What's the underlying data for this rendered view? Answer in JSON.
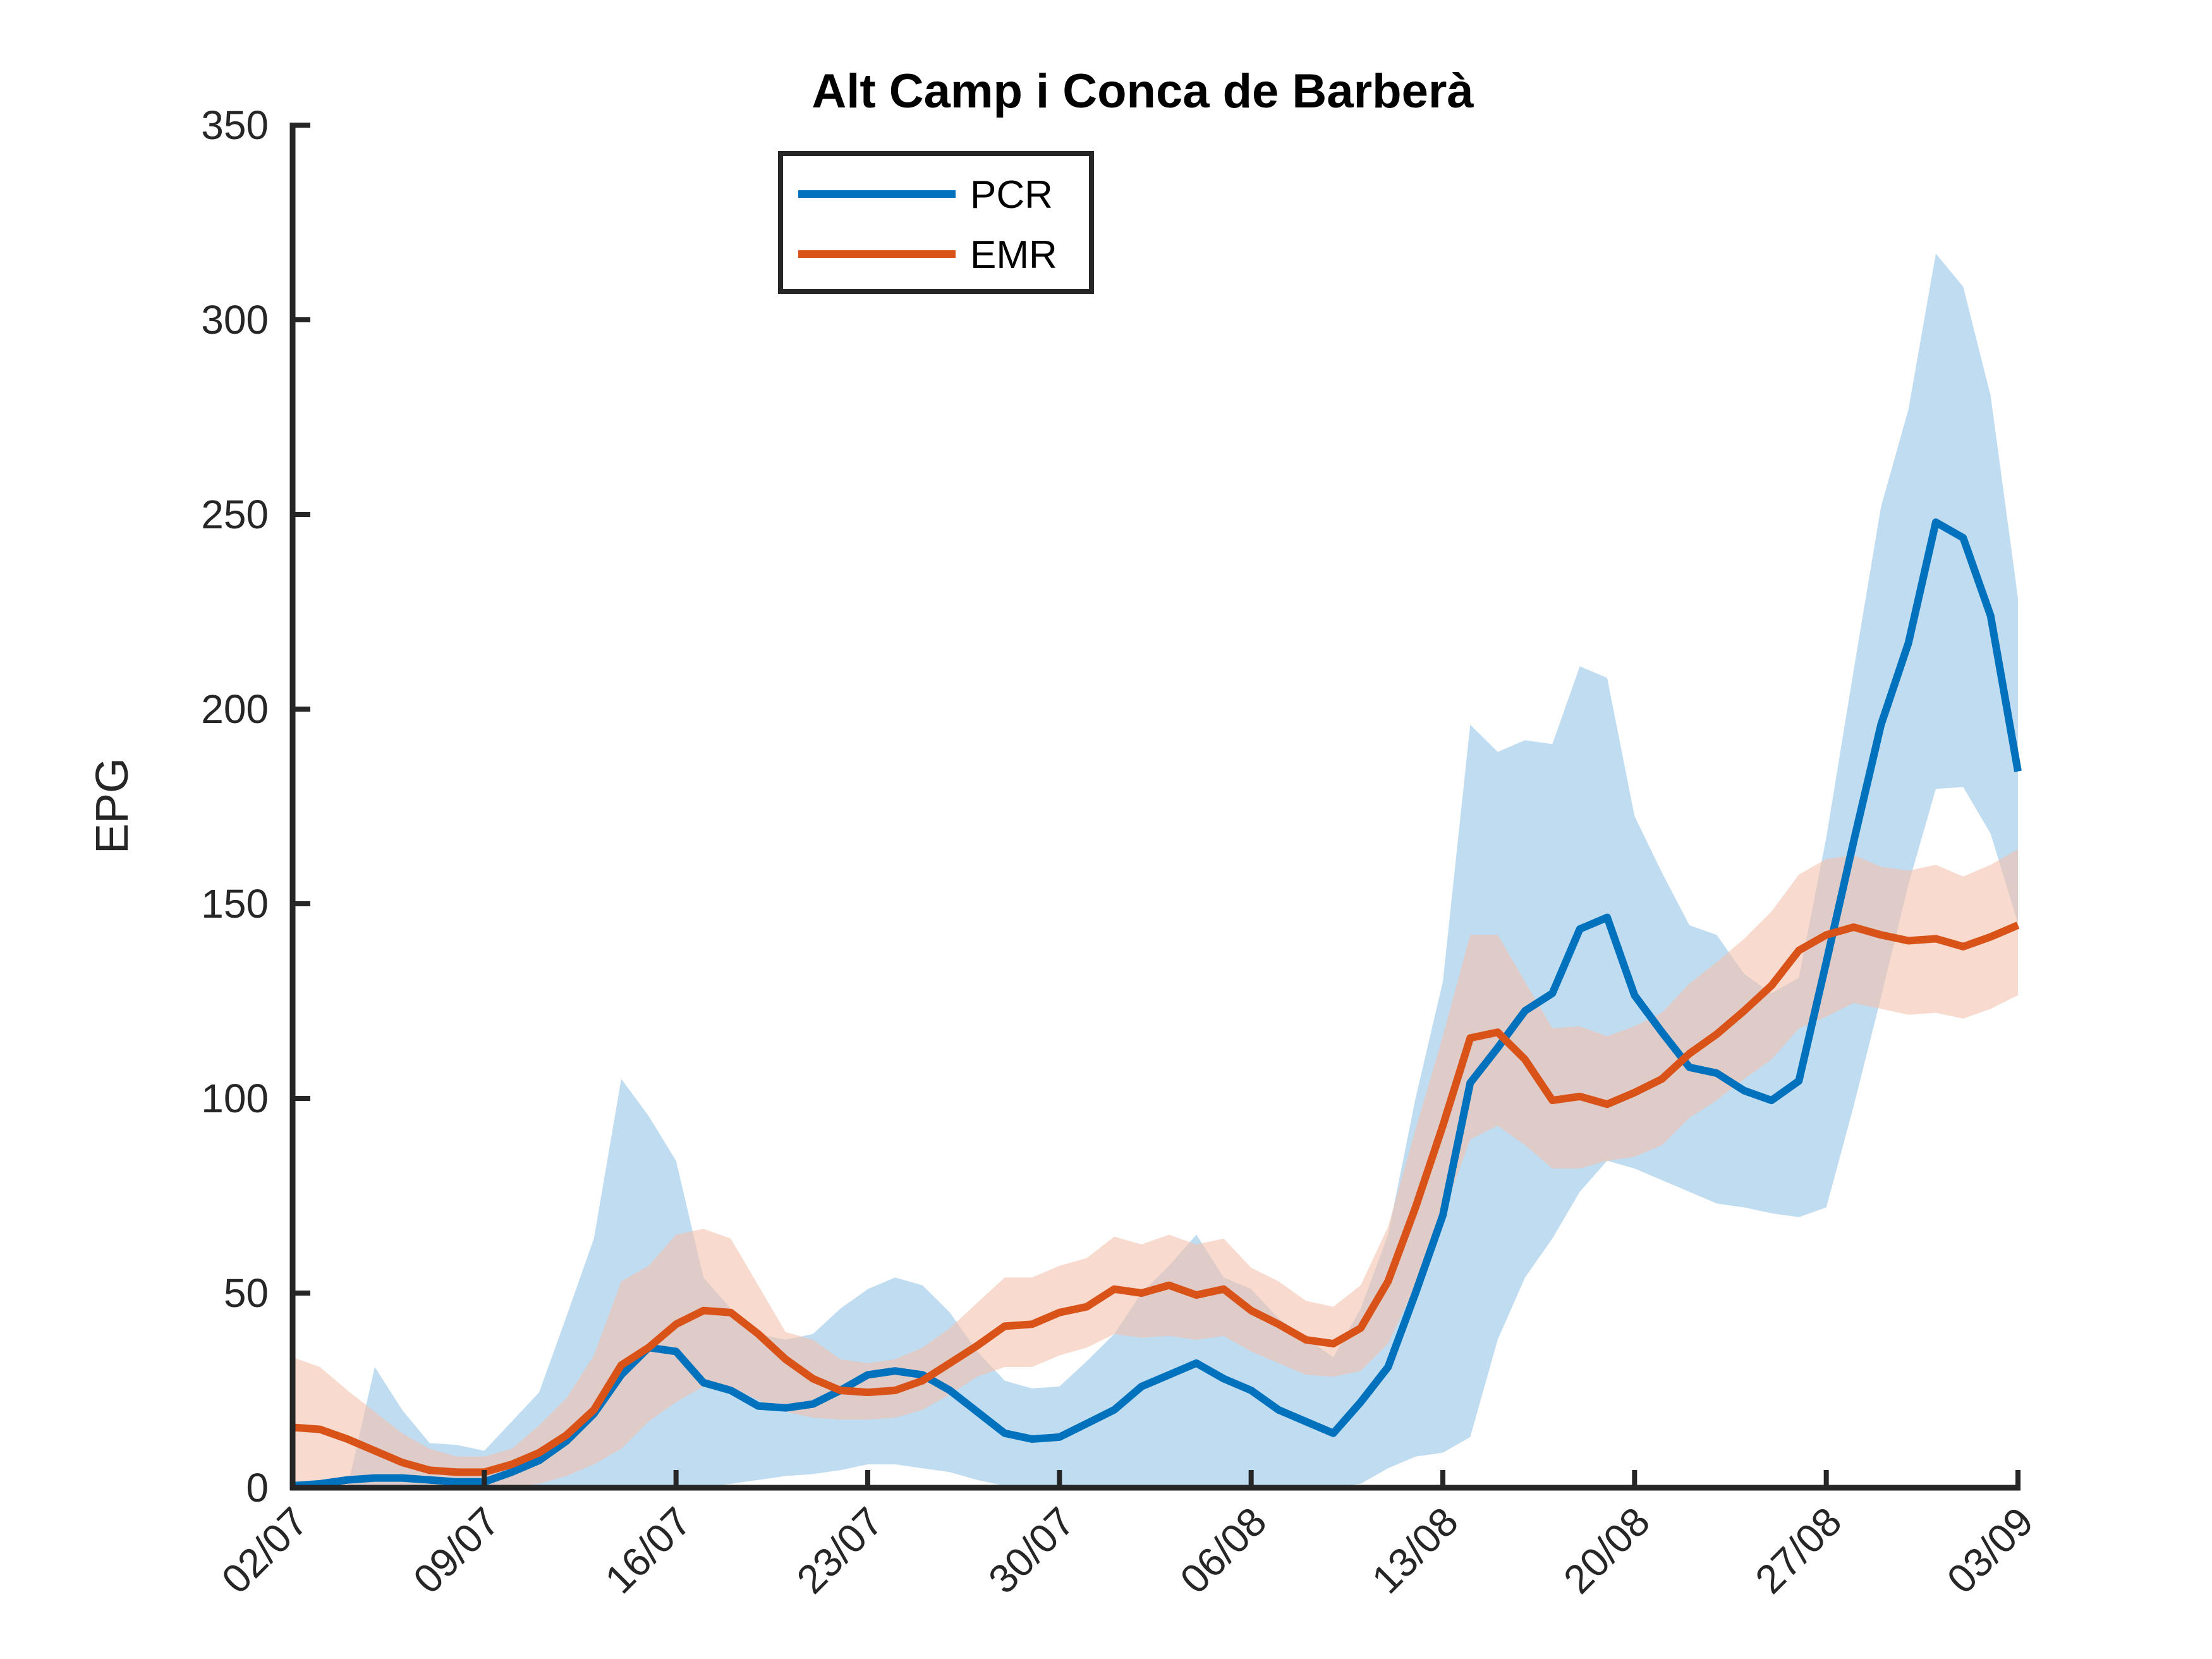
{
  "chart_data": {
    "type": "line",
    "title": "Alt Camp i Conca de Barberà",
    "xlabel": "",
    "ylabel": "EPG",
    "ylim": [
      0,
      350
    ],
    "yticks": [
      0,
      50,
      100,
      150,
      200,
      250,
      300,
      350
    ],
    "xlim": [
      "2020-07-02",
      "2020-09-03"
    ],
    "xticks": [
      "02/07",
      "09/07",
      "16/07",
      "23/07",
      "30/07",
      "06/08",
      "13/08",
      "20/08",
      "27/08",
      "03/09"
    ],
    "grid": false,
    "legend_position": "top-left",
    "series": [
      {
        "name": "PCR",
        "color": "#0072BD",
        "band_color": "#9ECAE9",
        "x": [
          "2020-07-02",
          "2020-07-03",
          "2020-07-04",
          "2020-07-05",
          "2020-07-06",
          "2020-07-07",
          "2020-07-08",
          "2020-07-09",
          "2020-07-10",
          "2020-07-11",
          "2020-07-12",
          "2020-07-13",
          "2020-07-14",
          "2020-07-15",
          "2020-07-16",
          "2020-07-17",
          "2020-07-18",
          "2020-07-19",
          "2020-07-20",
          "2020-07-21",
          "2020-07-22",
          "2020-07-23",
          "2020-07-24",
          "2020-07-25",
          "2020-07-26",
          "2020-07-27",
          "2020-07-28",
          "2020-07-29",
          "2020-07-30",
          "2020-07-31",
          "2020-08-01",
          "2020-08-02",
          "2020-08-03",
          "2020-08-04",
          "2020-08-05",
          "2020-08-06",
          "2020-08-07",
          "2020-08-08",
          "2020-08-09",
          "2020-08-10",
          "2020-08-11",
          "2020-08-12",
          "2020-08-13",
          "2020-08-14",
          "2020-08-15",
          "2020-08-16",
          "2020-08-17",
          "2020-08-18",
          "2020-08-19",
          "2020-08-20",
          "2020-08-21",
          "2020-08-22",
          "2020-08-23",
          "2020-08-24",
          "2020-08-25",
          "2020-08-26",
          "2020-08-27",
          "2020-08-28",
          "2020-08-29",
          "2020-08-30",
          "2020-08-31",
          "2020-09-01",
          "2020-09-02",
          "2020-09-03"
        ],
        "values": [
          0.5,
          1,
          2,
          2.5,
          2.5,
          2,
          1.5,
          1.5,
          4,
          7,
          12,
          19,
          29,
          36,
          35,
          27,
          25,
          21,
          20.5,
          21.5,
          25,
          29,
          30,
          29,
          25,
          19.5,
          14,
          12.5,
          13,
          16.5,
          20,
          26,
          29,
          32,
          28,
          25,
          20,
          17,
          14,
          22,
          31,
          50,
          70,
          104,
          113,
          122.5,
          127,
          143.5,
          146.5,
          126.5,
          117,
          108,
          106.5,
          102,
          99.5,
          104.5,
          135,
          166,
          196,
          217,
          248,
          244,
          224,
          184
        ],
        "lower": [
          0,
          0,
          0,
          0,
          0,
          0,
          0,
          0,
          0,
          0,
          0,
          0,
          0,
          0,
          0,
          0,
          1,
          2,
          3,
          3.5,
          4.5,
          6,
          6,
          5,
          4,
          2,
          0.5,
          0,
          0,
          0,
          0,
          0,
          0,
          0,
          0,
          0,
          0,
          0,
          0,
          1,
          5,
          8,
          9,
          13,
          38,
          54,
          64,
          76,
          84,
          82,
          79,
          76,
          73,
          72,
          70.5,
          69.5,
          72,
          98,
          126,
          155,
          179.5,
          180,
          168,
          145
        ],
        "upper": [
          0,
          0,
          0,
          31,
          20,
          11.5,
          11,
          9.5,
          17,
          24.5,
          44,
          64,
          105,
          95.5,
          84,
          54,
          46,
          39.5,
          38,
          39.5,
          46,
          51,
          54,
          52,
          45,
          35,
          27.5,
          25.5,
          26,
          32.5,
          39.5,
          50,
          57,
          65,
          54,
          51,
          43.5,
          38.5,
          33.5,
          46,
          65,
          100,
          130,
          196,
          189,
          192,
          191,
          211,
          208,
          172.5,
          158,
          144.5,
          142,
          132,
          127,
          131,
          167,
          210,
          252,
          277,
          317,
          308.5,
          280.5,
          228.5
        ]
      },
      {
        "name": "EMR",
        "color": "#D95319",
        "band_color": "#F4C2AE",
        "x": [
          "2020-07-02",
          "2020-07-03",
          "2020-07-04",
          "2020-07-05",
          "2020-07-06",
          "2020-07-07",
          "2020-07-08",
          "2020-07-09",
          "2020-07-10",
          "2020-07-11",
          "2020-07-12",
          "2020-07-13",
          "2020-07-14",
          "2020-07-15",
          "2020-07-16",
          "2020-07-17",
          "2020-07-18",
          "2020-07-19",
          "2020-07-20",
          "2020-07-21",
          "2020-07-22",
          "2020-07-23",
          "2020-07-24",
          "2020-07-25",
          "2020-07-26",
          "2020-07-27",
          "2020-07-28",
          "2020-07-29",
          "2020-07-30",
          "2020-07-31",
          "2020-08-01",
          "2020-08-02",
          "2020-08-03",
          "2020-08-04",
          "2020-08-05",
          "2020-08-06",
          "2020-08-07",
          "2020-08-08",
          "2020-08-09",
          "2020-08-10",
          "2020-08-11",
          "2020-08-12",
          "2020-08-13",
          "2020-08-14",
          "2020-08-15",
          "2020-08-16",
          "2020-08-17",
          "2020-08-18",
          "2020-08-19",
          "2020-08-20",
          "2020-08-21",
          "2020-08-22",
          "2020-08-23",
          "2020-08-24",
          "2020-08-25",
          "2020-08-26",
          "2020-08-27",
          "2020-08-28",
          "2020-08-29",
          "2020-08-30",
          "2020-08-31",
          "2020-09-01",
          "2020-09-02",
          "2020-09-03"
        ],
        "values": [
          15.5,
          15,
          12.5,
          9.5,
          6.5,
          4.5,
          4,
          4,
          6,
          9,
          13.5,
          20,
          31.5,
          36,
          42,
          45.5,
          45,
          39.5,
          33,
          28,
          25,
          24.5,
          25,
          27.5,
          32,
          36.5,
          41.5,
          42,
          45,
          46.5,
          51,
          50,
          52,
          49.5,
          51,
          45.5,
          42,
          38,
          37,
          41,
          53,
          72,
          93,
          115.5,
          117,
          110,
          99.5,
          100.5,
          98.5,
          101.5,
          105,
          111.5,
          116.5,
          122.5,
          129,
          138,
          142,
          144,
          142,
          140.5,
          141,
          139,
          141.5,
          144.5
        ],
        "lower": [
          0,
          0,
          0,
          0,
          0,
          0,
          0,
          0,
          0,
          1,
          3,
          6,
          10,
          17,
          22,
          26,
          26,
          22.5,
          19.5,
          18,
          17.5,
          17.5,
          18,
          20,
          24,
          28.5,
          31,
          31,
          34,
          36,
          39.5,
          38.5,
          39,
          38,
          39,
          35,
          32,
          29,
          28.5,
          30,
          37,
          52,
          70,
          89.5,
          93,
          88,
          82,
          82,
          84,
          85,
          88,
          95,
          99.5,
          105,
          110,
          118,
          121,
          124.5,
          123,
          121.5,
          122,
          120.5,
          123,
          126.5
        ],
        "upper": [
          33.5,
          31,
          25,
          19.5,
          14,
          10,
          8,
          8,
          10,
          16,
          23,
          34,
          53,
          57,
          65,
          66.5,
          64,
          52,
          40,
          38,
          33,
          32,
          33,
          36,
          41,
          47.5,
          54,
          54,
          57,
          59,
          64.5,
          62.5,
          65,
          62.5,
          64,
          56.5,
          53,
          48,
          46.5,
          52,
          67,
          92,
          116,
          142,
          142,
          130,
          118,
          118.5,
          116,
          118.5,
          122,
          129.5,
          135,
          141,
          148,
          157.5,
          161.5,
          162.5,
          159.5,
          158.5,
          160,
          157,
          160,
          164
        ]
      }
    ]
  }
}
